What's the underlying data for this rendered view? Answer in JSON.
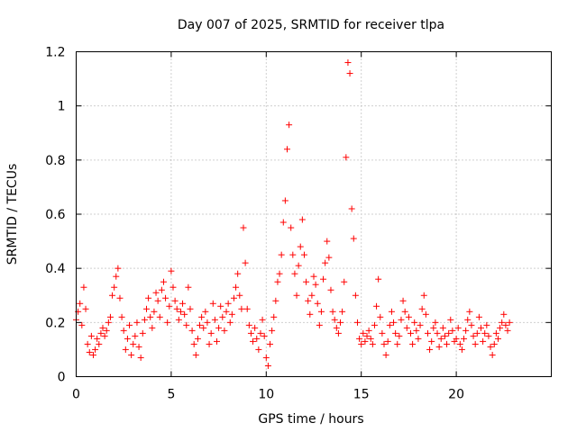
{
  "chart_data": {
    "type": "scatter",
    "title": "Day 007 of 2025, SRMTID for receiver tlpa",
    "xlabel": "GPS time / hours",
    "ylabel": "SRMTID / TECUs",
    "xlim": [
      0,
      25
    ],
    "ylim": [
      0,
      1.2
    ],
    "xticks": [
      0,
      5,
      10,
      15,
      20
    ],
    "yticks": [
      0,
      0.2,
      0.4,
      0.6,
      0.8,
      1,
      1.2
    ],
    "xtick_labels": [
      "0",
      "5",
      "10",
      "15",
      "20"
    ],
    "ytick_labels": [
      "0",
      "0.2",
      "0.4",
      "0.6",
      "0.8",
      "1",
      "1.2"
    ],
    "grid": true,
    "marker": "+",
    "color": "#ff0000",
    "series": [
      {
        "name": "SRMTID",
        "points": [
          [
            0.0,
            0.21
          ],
          [
            0.1,
            0.24
          ],
          [
            0.2,
            0.27
          ],
          [
            0.3,
            0.19
          ],
          [
            0.4,
            0.33
          ],
          [
            0.5,
            0.25
          ],
          [
            0.6,
            0.12
          ],
          [
            0.7,
            0.09
          ],
          [
            0.8,
            0.15
          ],
          [
            0.9,
            0.08
          ],
          [
            1.0,
            0.1
          ],
          [
            1.1,
            0.14
          ],
          [
            1.2,
            0.12
          ],
          [
            1.3,
            0.16
          ],
          [
            1.4,
            0.18
          ],
          [
            1.5,
            0.15
          ],
          [
            1.6,
            0.17
          ],
          [
            1.7,
            0.2
          ],
          [
            1.8,
            0.22
          ],
          [
            1.9,
            0.3
          ],
          [
            2.0,
            0.33
          ],
          [
            2.1,
            0.37
          ],
          [
            2.2,
            0.4
          ],
          [
            2.3,
            0.29
          ],
          [
            2.4,
            0.22
          ],
          [
            2.5,
            0.17
          ],
          [
            2.6,
            0.1
          ],
          [
            2.7,
            0.14
          ],
          [
            2.8,
            0.19
          ],
          [
            2.9,
            0.08
          ],
          [
            3.0,
            0.12
          ],
          [
            3.1,
            0.15
          ],
          [
            3.2,
            0.2
          ],
          [
            3.3,
            0.11
          ],
          [
            3.4,
            0.07
          ],
          [
            3.5,
            0.16
          ],
          [
            3.6,
            0.21
          ],
          [
            3.7,
            0.25
          ],
          [
            3.8,
            0.29
          ],
          [
            3.9,
            0.22
          ],
          [
            4.0,
            0.18
          ],
          [
            4.1,
            0.24
          ],
          [
            4.2,
            0.31
          ],
          [
            4.3,
            0.28
          ],
          [
            4.4,
            0.22
          ],
          [
            4.5,
            0.32
          ],
          [
            4.6,
            0.35
          ],
          [
            4.7,
            0.29
          ],
          [
            4.8,
            0.2
          ],
          [
            4.9,
            0.26
          ],
          [
            5.0,
            0.39
          ],
          [
            5.1,
            0.33
          ],
          [
            5.2,
            0.28
          ],
          [
            5.3,
            0.25
          ],
          [
            5.4,
            0.21
          ],
          [
            5.5,
            0.24
          ],
          [
            5.6,
            0.27
          ],
          [
            5.7,
            0.23
          ],
          [
            5.8,
            0.19
          ],
          [
            5.9,
            0.33
          ],
          [
            6.0,
            0.25
          ],
          [
            6.1,
            0.17
          ],
          [
            6.2,
            0.12
          ],
          [
            6.3,
            0.08
          ],
          [
            6.4,
            0.14
          ],
          [
            6.5,
            0.19
          ],
          [
            6.6,
            0.22
          ],
          [
            6.7,
            0.18
          ],
          [
            6.8,
            0.24
          ],
          [
            6.9,
            0.2
          ],
          [
            7.0,
            0.12
          ],
          [
            7.1,
            0.16
          ],
          [
            7.2,
            0.27
          ],
          [
            7.3,
            0.21
          ],
          [
            7.4,
            0.13
          ],
          [
            7.5,
            0.18
          ],
          [
            7.6,
            0.26
          ],
          [
            7.7,
            0.22
          ],
          [
            7.8,
            0.17
          ],
          [
            7.9,
            0.24
          ],
          [
            8.0,
            0.27
          ],
          [
            8.1,
            0.2
          ],
          [
            8.2,
            0.23
          ],
          [
            8.3,
            0.29
          ],
          [
            8.4,
            0.33
          ],
          [
            8.5,
            0.38
          ],
          [
            8.6,
            0.3
          ],
          [
            8.7,
            0.25
          ],
          [
            8.8,
            0.55
          ],
          [
            8.9,
            0.42
          ],
          [
            9.0,
            0.25
          ],
          [
            9.1,
            0.19
          ],
          [
            9.2,
            0.16
          ],
          [
            9.3,
            0.13
          ],
          [
            9.4,
            0.18
          ],
          [
            9.5,
            0.14
          ],
          [
            9.6,
            0.1
          ],
          [
            9.7,
            0.16
          ],
          [
            9.8,
            0.21
          ],
          [
            9.9,
            0.15
          ],
          [
            10.0,
            0.07
          ],
          [
            10.1,
            0.04
          ],
          [
            10.2,
            0.12
          ],
          [
            10.3,
            0.17
          ],
          [
            10.4,
            0.22
          ],
          [
            10.5,
            0.28
          ],
          [
            10.6,
            0.35
          ],
          [
            10.7,
            0.38
          ],
          [
            10.8,
            0.45
          ],
          [
            10.9,
            0.57
          ],
          [
            11.0,
            0.65
          ],
          [
            11.1,
            0.84
          ],
          [
            11.2,
            0.93
          ],
          [
            11.3,
            0.55
          ],
          [
            11.4,
            0.45
          ],
          [
            11.5,
            0.38
          ],
          [
            11.6,
            0.3
          ],
          [
            11.7,
            0.41
          ],
          [
            11.8,
            0.48
          ],
          [
            11.9,
            0.58
          ],
          [
            12.0,
            0.45
          ],
          [
            12.1,
            0.35
          ],
          [
            12.2,
            0.28
          ],
          [
            12.3,
            0.23
          ],
          [
            12.4,
            0.3
          ],
          [
            12.5,
            0.37
          ],
          [
            12.6,
            0.34
          ],
          [
            12.7,
            0.27
          ],
          [
            12.8,
            0.19
          ],
          [
            12.9,
            0.24
          ],
          [
            13.0,
            0.36
          ],
          [
            13.1,
            0.42
          ],
          [
            13.2,
            0.5
          ],
          [
            13.3,
            0.44
          ],
          [
            13.4,
            0.32
          ],
          [
            13.5,
            0.24
          ],
          [
            13.6,
            0.21
          ],
          [
            13.7,
            0.18
          ],
          [
            13.8,
            0.16
          ],
          [
            13.9,
            0.2
          ],
          [
            14.0,
            0.24
          ],
          [
            14.1,
            0.35
          ],
          [
            14.2,
            0.81
          ],
          [
            14.3,
            1.16
          ],
          [
            14.4,
            1.12
          ],
          [
            14.5,
            0.62
          ],
          [
            14.6,
            0.51
          ],
          [
            14.7,
            0.3
          ],
          [
            14.8,
            0.2
          ],
          [
            14.9,
            0.14
          ],
          [
            15.0,
            0.12
          ],
          [
            15.1,
            0.16
          ],
          [
            15.2,
            0.13
          ],
          [
            15.3,
            0.15
          ],
          [
            15.4,
            0.17
          ],
          [
            15.5,
            0.14
          ],
          [
            15.6,
            0.12
          ],
          [
            15.7,
            0.19
          ],
          [
            15.8,
            0.26
          ],
          [
            15.9,
            0.36
          ],
          [
            16.0,
            0.22
          ],
          [
            16.1,
            0.16
          ],
          [
            16.2,
            0.12
          ],
          [
            16.3,
            0.08
          ],
          [
            16.4,
            0.13
          ],
          [
            16.5,
            0.19
          ],
          [
            16.6,
            0.24
          ],
          [
            16.7,
            0.2
          ],
          [
            16.8,
            0.16
          ],
          [
            16.9,
            0.12
          ],
          [
            17.0,
            0.15
          ],
          [
            17.1,
            0.21
          ],
          [
            17.2,
            0.28
          ],
          [
            17.3,
            0.24
          ],
          [
            17.4,
            0.18
          ],
          [
            17.5,
            0.22
          ],
          [
            17.6,
            0.16
          ],
          [
            17.7,
            0.12
          ],
          [
            17.8,
            0.2
          ],
          [
            17.9,
            0.17
          ],
          [
            18.0,
            0.14
          ],
          [
            18.1,
            0.19
          ],
          [
            18.2,
            0.25
          ],
          [
            18.3,
            0.3
          ],
          [
            18.4,
            0.23
          ],
          [
            18.5,
            0.16
          ],
          [
            18.6,
            0.1
          ],
          [
            18.7,
            0.13
          ],
          [
            18.8,
            0.18
          ],
          [
            18.9,
            0.2
          ],
          [
            19.0,
            0.16
          ],
          [
            19.1,
            0.11
          ],
          [
            19.2,
            0.14
          ],
          [
            19.3,
            0.18
          ],
          [
            19.4,
            0.15
          ],
          [
            19.5,
            0.12
          ],
          [
            19.6,
            0.16
          ],
          [
            19.7,
            0.21
          ],
          [
            19.8,
            0.17
          ],
          [
            19.9,
            0.13
          ],
          [
            20.0,
            0.14
          ],
          [
            20.1,
            0.18
          ],
          [
            20.2,
            0.12
          ],
          [
            20.3,
            0.1
          ],
          [
            20.4,
            0.14
          ],
          [
            20.5,
            0.17
          ],
          [
            20.6,
            0.21
          ],
          [
            20.7,
            0.24
          ],
          [
            20.8,
            0.19
          ],
          [
            20.9,
            0.15
          ],
          [
            21.0,
            0.12
          ],
          [
            21.1,
            0.16
          ],
          [
            21.2,
            0.22
          ],
          [
            21.3,
            0.18
          ],
          [
            21.4,
            0.13
          ],
          [
            21.5,
            0.16
          ],
          [
            21.6,
            0.19
          ],
          [
            21.7,
            0.15
          ],
          [
            21.8,
            0.11
          ],
          [
            21.9,
            0.08
          ],
          [
            22.0,
            0.12
          ],
          [
            22.1,
            0.16
          ],
          [
            22.2,
            0.14
          ],
          [
            22.3,
            0.18
          ],
          [
            22.4,
            0.2
          ],
          [
            22.5,
            0.23
          ],
          [
            22.6,
            0.19
          ],
          [
            22.7,
            0.17
          ],
          [
            22.8,
            0.2
          ]
        ]
      }
    ]
  }
}
